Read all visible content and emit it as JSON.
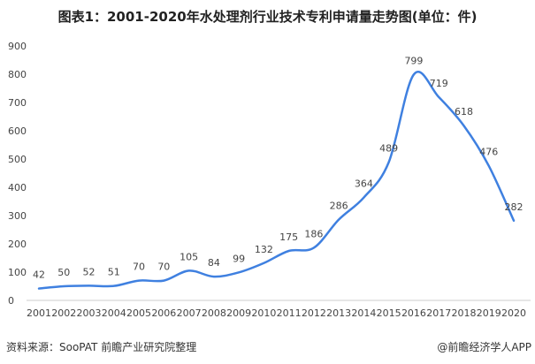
{
  "title": "图表1：2001-2020年水处理剂行业技术专利申请量走势图(单位：件)",
  "source": "资料来源：SooPAT 前瞻产业研究院整理",
  "brand": "@前瞻经济学人APP",
  "watermark": "前瞻产业研究院",
  "colors": {
    "line": "#3f80e0",
    "grid": "#e6e6e6"
  },
  "chart_data": {
    "type": "line",
    "title": "图表1：2001-2020年水处理剂行业技术专利申请量走势图(单位：件)",
    "xlabel": "",
    "ylabel": "",
    "categories": [
      "2001",
      "2002",
      "2003",
      "2004",
      "2005",
      "2006",
      "2007",
      "2008",
      "2009",
      "2010",
      "2011",
      "2012",
      "2013",
      "2014",
      "2015",
      "2016",
      "2017",
      "2018",
      "2019",
      "2020"
    ],
    "values": [
      42,
      50,
      52,
      51,
      70,
      70,
      105,
      84,
      99,
      132,
      175,
      186,
      286,
      364,
      489,
      799,
      719,
      618,
      476,
      282
    ],
    "yticks": [
      0,
      100,
      200,
      300,
      400,
      500,
      600,
      700,
      800,
      900
    ],
    "ylim": [
      0,
      900
    ],
    "grid": false,
    "smooth": true,
    "data_labels": true
  }
}
